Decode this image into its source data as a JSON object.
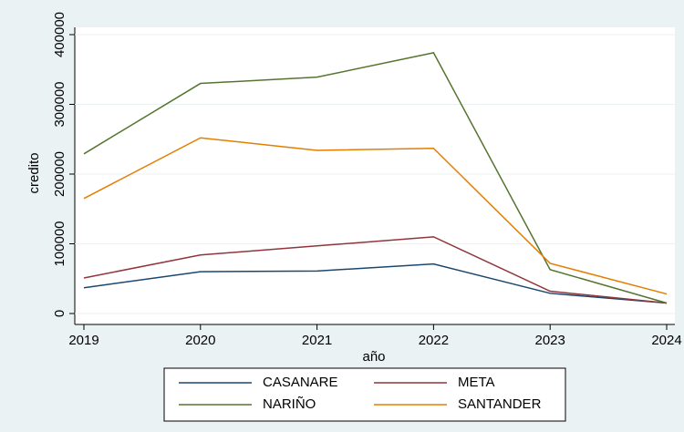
{
  "chart_data": {
    "type": "line",
    "x_label": "año",
    "y_label": "credito",
    "x": [
      2019,
      2020,
      2021,
      2022,
      2023,
      2024
    ],
    "series": [
      {
        "name": "CASANARE",
        "color": "#1a476f",
        "values": [
          37000,
          60000,
          61000,
          71000,
          29000,
          15000
        ]
      },
      {
        "name": "META",
        "color": "#90353b",
        "values": [
          51000,
          84000,
          97000,
          110000,
          32000,
          15000
        ]
      },
      {
        "name": "NARIÑO",
        "color": "#55752f",
        "values": [
          229000,
          330000,
          339000,
          374000,
          63000,
          15000
        ]
      },
      {
        "name": "SANTANDER",
        "color": "#e37e00",
        "values": [
          165000,
          252000,
          234000,
          237000,
          72000,
          28000
        ]
      }
    ],
    "xlim": [
      2019,
      2024
    ],
    "xticks": [
      2019,
      2020,
      2021,
      2022,
      2023,
      2024
    ],
    "ylim": [
      0,
      400000
    ],
    "yticks": [
      0,
      100000,
      200000,
      300000,
      400000
    ],
    "grid": true
  }
}
